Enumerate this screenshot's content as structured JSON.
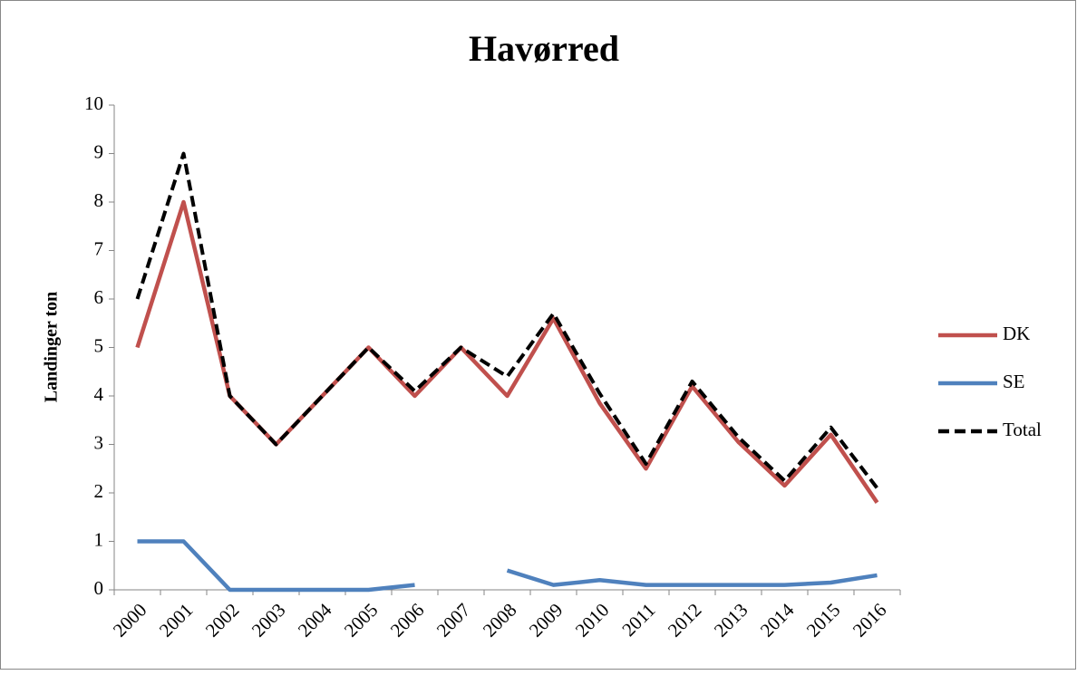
{
  "chart_data": {
    "type": "line",
    "title": "Havørred",
    "y_label": "Landinger ton",
    "categories": [
      "2000",
      "2001",
      "2002",
      "2003",
      "2004",
      "2005",
      "2006",
      "2007",
      "2008",
      "2009",
      "2010",
      "2011",
      "2012",
      "2013",
      "2014",
      "2015",
      "2016"
    ],
    "series": [
      {
        "name": "DK",
        "color": "#c0504d",
        "dash": false,
        "values": [
          5,
          8,
          4,
          3,
          4,
          5,
          4,
          5,
          4,
          5.6,
          3.85,
          2.5,
          4.2,
          3.05,
          2.15,
          3.2,
          1.8
        ]
      },
      {
        "name": "SE",
        "color": "#4f81bd",
        "dash": false,
        "values": [
          1,
          1,
          0,
          0,
          0,
          0,
          0.1,
          null,
          0.4,
          0.1,
          0.2,
          0.1,
          0.1,
          0.1,
          0.1,
          0.15,
          0.3
        ]
      },
      {
        "name": "Total",
        "color": "#000000",
        "dash": true,
        "values": [
          6,
          9,
          4,
          3,
          4,
          5,
          4.1,
          5,
          4.4,
          5.7,
          4.05,
          2.6,
          4.3,
          3.15,
          2.25,
          3.35,
          2.1
        ]
      }
    ],
    "ylim": [
      0,
      10
    ],
    "yticks": [
      0,
      1,
      2,
      3,
      4,
      5,
      6,
      7,
      8,
      9,
      10
    ],
    "legend": "right",
    "grid": false
  }
}
